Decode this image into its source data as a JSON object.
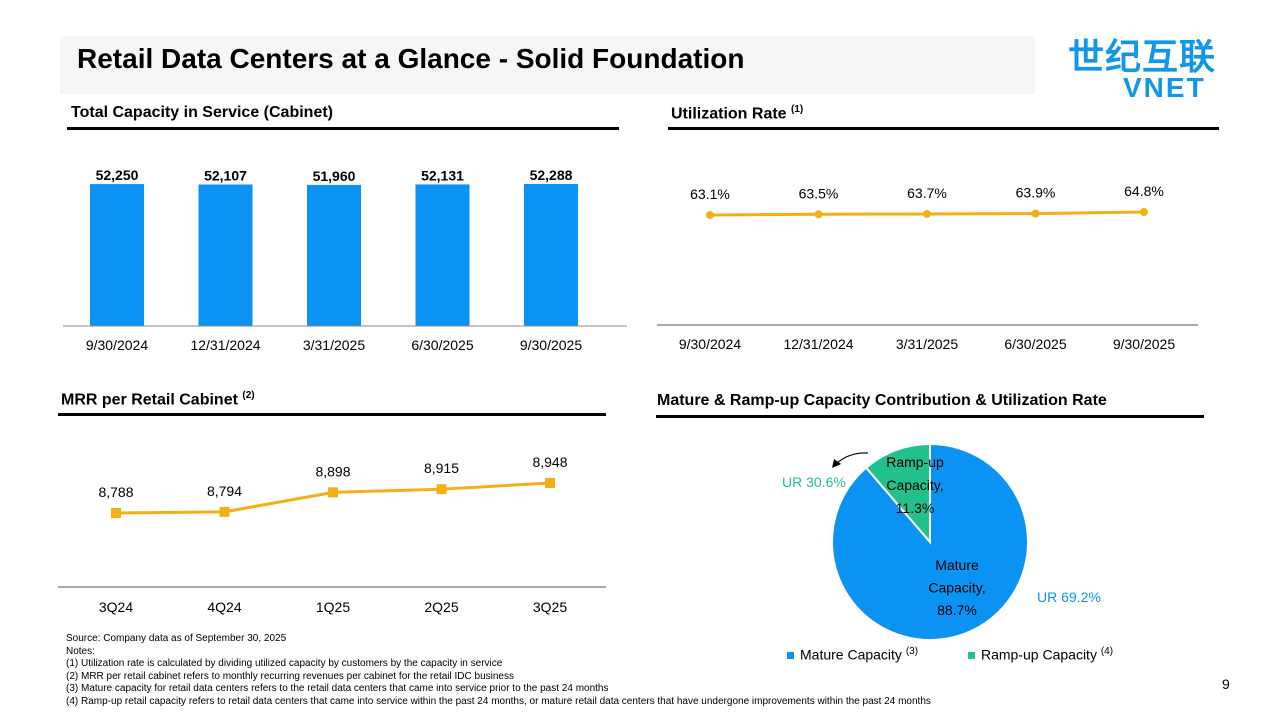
{
  "page_title": "Retail Data Centers at a Glance - Solid Foundation",
  "logo": {
    "cn": "世纪互联",
    "en": "VNET",
    "color": "#1296e8"
  },
  "page_number": "9",
  "colors": {
    "blue": "#0b93f4",
    "gold": "#f2b015",
    "green": "#22c08c"
  },
  "chart_data": [
    {
      "id": "capacity",
      "type": "bar",
      "title": "Total Capacity in Service (Cabinet)",
      "categories": [
        "9/30/2024",
        "12/31/2024",
        "3/31/2025",
        "6/30/2025",
        "9/30/2025"
      ],
      "values": [
        52250,
        52107,
        51960,
        52131,
        52288
      ],
      "labels": [
        "52,250",
        "52,107",
        "51,960",
        "52,131",
        "52,288"
      ],
      "xlabel": "",
      "ylabel": ""
    },
    {
      "id": "utilization",
      "type": "line",
      "title": "Utilization Rate",
      "title_note": "(1)",
      "categories": [
        "9/30/2024",
        "12/31/2024",
        "3/31/2025",
        "6/30/2025",
        "9/30/2025"
      ],
      "values": [
        63.1,
        63.5,
        63.7,
        63.9,
        64.8
      ],
      "labels": [
        "63.1%",
        "63.5%",
        "63.7%",
        "63.9%",
        "64.8%"
      ],
      "marker": "circle"
    },
    {
      "id": "mrr",
      "type": "line",
      "title": "MRR per Retail Cabinet",
      "title_note": "(2)",
      "categories": [
        "3Q24",
        "4Q24",
        "1Q25",
        "2Q25",
        "3Q25"
      ],
      "values": [
        8788,
        8794,
        8898,
        8915,
        8948
      ],
      "labels": [
        "8,788",
        "8,794",
        "8,898",
        "8,915",
        "8,948"
      ],
      "marker": "square"
    },
    {
      "id": "mature_rampup",
      "type": "pie",
      "title": "Mature & Ramp-up Capacity Contribution & Utilization Rate",
      "slices": [
        {
          "name": "Mature Capacity",
          "value": 88.7,
          "label_lines": [
            "Mature",
            "Capacity,",
            "88.7%"
          ],
          "ur": "UR 69.2%"
        },
        {
          "name": "Ramp-up Capacity",
          "value": 11.3,
          "label_lines": [
            "Ramp-up",
            "Capacity,",
            "11.3%"
          ],
          "ur": "UR 30.6%"
        }
      ],
      "legend": [
        {
          "label": "Mature Capacity",
          "note": "(3)"
        },
        {
          "label": "Ramp-up Capacity",
          "note": "(4)"
        }
      ]
    }
  ],
  "notes": [
    "Source: Company data as of September 30, 2025",
    "Notes:",
    "(1) Utilization rate is calculated by dividing utilized capacity by customers by the capacity in service",
    "(2) MRR per retail cabinet refers to monthly recurring revenues per cabinet for the retail IDC business",
    "(3) Mature capacity for retail data centers refers to the retail data centers that came into service prior to the past 24 months",
    "(4) Ramp-up retail capacity refers to retail data centers that came into service within the past 24 months, or mature retail data centers that have undergone improvements within the past 24 months"
  ]
}
